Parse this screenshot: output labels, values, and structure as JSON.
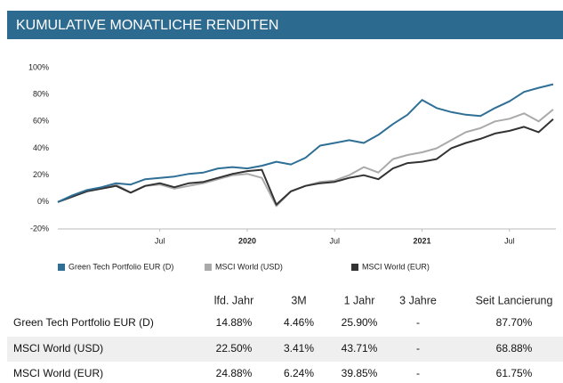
{
  "chart_data": {
    "type": "line",
    "title": "KUMULATIVE MONATLICHE RENDITEN",
    "x": [
      "2018-12",
      "2019-01",
      "2019-02",
      "2019-03",
      "2019-04",
      "2019-05",
      "2019-06",
      "2019-07",
      "2019-08",
      "2019-09",
      "2019-10",
      "2019-11",
      "2019-12",
      "2020-01",
      "2020-02",
      "2020-03",
      "2020-04",
      "2020-05",
      "2020-06",
      "2020-07",
      "2020-08",
      "2020-09",
      "2020-10",
      "2020-11",
      "2020-12",
      "2021-01",
      "2021-02",
      "2021-03",
      "2021-04",
      "2021-05",
      "2021-06",
      "2021-07",
      "2021-08",
      "2021-09",
      "2021-10"
    ],
    "series": [
      {
        "name": "Green Tech Portfolio EUR (D)",
        "color": "#2f6f96",
        "values": [
          0,
          5,
          9,
          11,
          14,
          13,
          17,
          18,
          19,
          21,
          22,
          25,
          26,
          25,
          27,
          30,
          28,
          33,
          42,
          44,
          46,
          44,
          50,
          58,
          65,
          76,
          70,
          67,
          65,
          64,
          70,
          75,
          82,
          85,
          87.7
        ]
      },
      {
        "name": "MSCI World (USD)",
        "color": "#aaaaaa",
        "values": [
          0,
          4,
          8,
          10,
          13,
          7,
          12,
          13,
          10,
          12,
          14,
          17,
          20,
          21,
          18,
          -3,
          8,
          12,
          15,
          16,
          20,
          26,
          22,
          32,
          35,
          37,
          40,
          46,
          52,
          55,
          60,
          62,
          66,
          60,
          68.88
        ]
      },
      {
        "name": "MSCI World (EUR)",
        "color": "#333333",
        "values": [
          0,
          4,
          8,
          10,
          12,
          7,
          12,
          14,
          11,
          14,
          15,
          18,
          21,
          23,
          24,
          -2,
          8,
          12,
          14,
          15,
          18,
          20,
          17,
          25,
          29,
          30,
          32,
          40,
          44,
          47,
          51,
          53,
          56,
          52,
          61.75
        ]
      }
    ],
    "xlim": [
      "2018-12",
      "2021-10"
    ],
    "xticks": [
      {
        "value": "2019-07",
        "label": "Jul"
      },
      {
        "value": "2020-01",
        "label": "2020"
      },
      {
        "value": "2020-07",
        "label": "Jul"
      },
      {
        "value": "2021-01",
        "label": "2021"
      },
      {
        "value": "2021-07",
        "label": "Jul"
      }
    ],
    "ylim": [
      -20,
      100
    ],
    "yticks": [
      {
        "value": -20,
        "label": "-20%"
      },
      {
        "value": 0,
        "label": "0%"
      },
      {
        "value": 20,
        "label": "20%"
      },
      {
        "value": 40,
        "label": "40%"
      },
      {
        "value": 60,
        "label": "60%"
      },
      {
        "value": 80,
        "label": "80%"
      },
      {
        "value": 100,
        "label": "100%"
      }
    ],
    "grid": false
  },
  "table": {
    "columns": [
      "lfd. Jahr",
      "3M",
      "1 Jahr",
      "3 Jahre",
      "Seit Lancierung"
    ],
    "rows": [
      [
        "Green Tech Portfolio EUR (D)",
        "14.88%",
        "4.46%",
        "25.90%",
        "-",
        "87.70%"
      ],
      [
        "MSCI World (USD)",
        "22.50%",
        "3.41%",
        "43.71%",
        "-",
        "68.88%"
      ],
      [
        "MSCI World (EUR)",
        "24.88%",
        "6.24%",
        "39.85%",
        "-",
        "61.75%"
      ]
    ]
  }
}
